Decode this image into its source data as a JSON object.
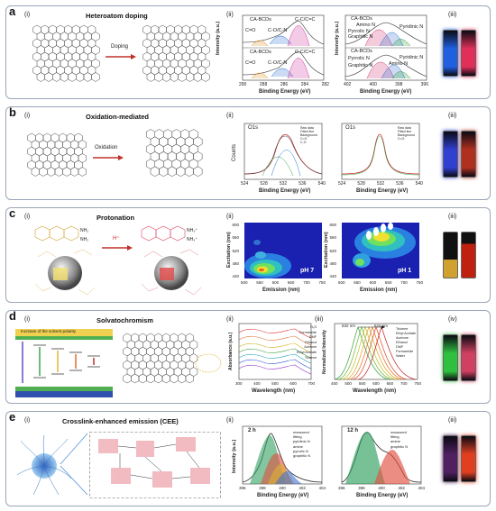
{
  "panels": {
    "a": {
      "label": "a",
      "title": "Heteroatom doping",
      "roman": [
        "(i)",
        "(ii)",
        "(iii)"
      ],
      "arrow_label": "Doping",
      "xps_c": {
        "xlabel": "Binding Energy (eV)",
        "ylabel": "Intensity (a.u.)",
        "ticks": [
          "290",
          "288",
          "286",
          "284",
          "282"
        ],
        "labels_top": [
          "CA-BCDs",
          "C=O",
          "C-O/C-N",
          "C-C/C=C"
        ],
        "labels_bottom": [
          "CA-BCDs",
          "C=O",
          "C-O/C-N",
          "C-C/C=C"
        ]
      },
      "xps_n": {
        "xlabel": "Binding Energy (eV)",
        "ylabel": "Intensity (a.u.)",
        "ticks": [
          "402",
          "400",
          "398",
          "396"
        ],
        "labels_top": [
          "CA-BCDs",
          "Amino N",
          "Pyrrolic N",
          "Graphitic N",
          "Pyridinic N"
        ],
        "labels_bottom": [
          "CA-BCDs",
          "Pyrrolic N",
          "Graphitic N",
          "Amino N",
          "Pyridinic N"
        ]
      },
      "vial_colors": [
        "#2060e0",
        "#e0305a"
      ]
    },
    "b": {
      "label": "b",
      "title": "Oxidation-mediated",
      "roman": [
        "(i)",
        "(ii)",
        "(iii)"
      ],
      "arrow_label": "Oxidation",
      "chart1": {
        "title": "O1s",
        "xlabel": "Binding Energy (eV)",
        "ylabel": "Counts",
        "ticks": [
          "524",
          "528",
          "532",
          "536",
          "540"
        ],
        "legend": [
          "Raw data",
          "Fitted line",
          "Background",
          "C=O",
          "C-O"
        ]
      },
      "chart2": {
        "title": "O1s",
        "xlabel": "Binding Energy (eV)",
        "ticks": [
          "524",
          "528",
          "532",
          "536",
          "540"
        ],
        "legend": [
          "Raw data",
          "Fitted line",
          "Background",
          "C=O"
        ]
      },
      "vial_colors": [
        "#3040d0",
        "#b03020"
      ]
    },
    "c": {
      "label": "c",
      "title": "Protonation",
      "roman": [
        "(i)",
        "(ii)",
        "(iii)"
      ],
      "arrow_label": "H⁺",
      "map1": {
        "xlabel": "Emission (nm)",
        "ylabel": "Excitation (nm)",
        "xticks": [
          "500",
          "550",
          "600",
          "650",
          "700",
          "750"
        ],
        "yticks": [
          "600",
          "560",
          "520",
          "480",
          "440"
        ],
        "tag": "pH 7"
      },
      "map2": {
        "xlabel": "Emission (nm)",
        "ylabel": "Excitation (nm)",
        "xticks": [
          "500",
          "550",
          "600",
          "650",
          "700",
          "750"
        ],
        "yticks": [
          "600",
          "560",
          "520",
          "480",
          "440"
        ],
        "tag": "pH 1"
      },
      "vial_colors": [
        "#d0a030",
        "#c02010"
      ]
    },
    "d": {
      "label": "d",
      "title": "Solvatochromism",
      "roman": [
        "(i)",
        "(ii)",
        "(iii)",
        "(iv)"
      ],
      "banner": "Increase of the solvent polarity",
      "abs": {
        "xlabel": "Wavelength (nm)",
        "ylabel": "Absorbance (a.u.)",
        "ticks": [
          "300",
          "400",
          "500",
          "600",
          "700"
        ],
        "solvents": [
          "H₂O",
          "Formamide",
          "DMF",
          "Ethanol",
          "Acetone",
          "Ethyl Acetate",
          "Toluene"
        ]
      },
      "pl": {
        "xlabel": "Wavelength (nm)",
        "ylabel": "Normalized Intensity",
        "ticks": [
          "450",
          "500",
          "550",
          "600",
          "650",
          "700",
          "750"
        ],
        "peak1": "532 nm",
        "peak2": "624 nm",
        "legend": [
          "Toluene",
          "Ethyl Acetate",
          "Acetone",
          "Ethanol",
          "DMF",
          "Formamide",
          "Water"
        ]
      },
      "vial_colors": [
        "#30c040",
        "#d04060"
      ]
    },
    "e": {
      "label": "e",
      "title": "Crosslink-enhanced emission (CEE)",
      "roman": [
        "(i)",
        "(ii)",
        "(iii)"
      ],
      "chart1": {
        "tag": "2 h",
        "xlabel": "Binding Energy (eV)",
        "ylabel": "Intensity (a.u.)",
        "ticks": [
          "396",
          "398",
          "400",
          "402",
          "404"
        ],
        "legend": [
          "measured",
          "fitting",
          "pyridinic N",
          "amine",
          "pyrrolic N",
          "graphitic N"
        ]
      },
      "chart2": {
        "tag": "12 h",
        "xlabel": "Binding Energy (eV)",
        "ticks": [
          "396",
          "398",
          "400",
          "402",
          "404"
        ],
        "legend": [
          "measured",
          "fitting",
          "amine",
          "graphitic N"
        ]
      },
      "vial_colors": [
        "#502060",
        "#e04020"
      ]
    }
  },
  "colors": {
    "border": "#9aa6b8",
    "arrow": "#c0302a"
  }
}
